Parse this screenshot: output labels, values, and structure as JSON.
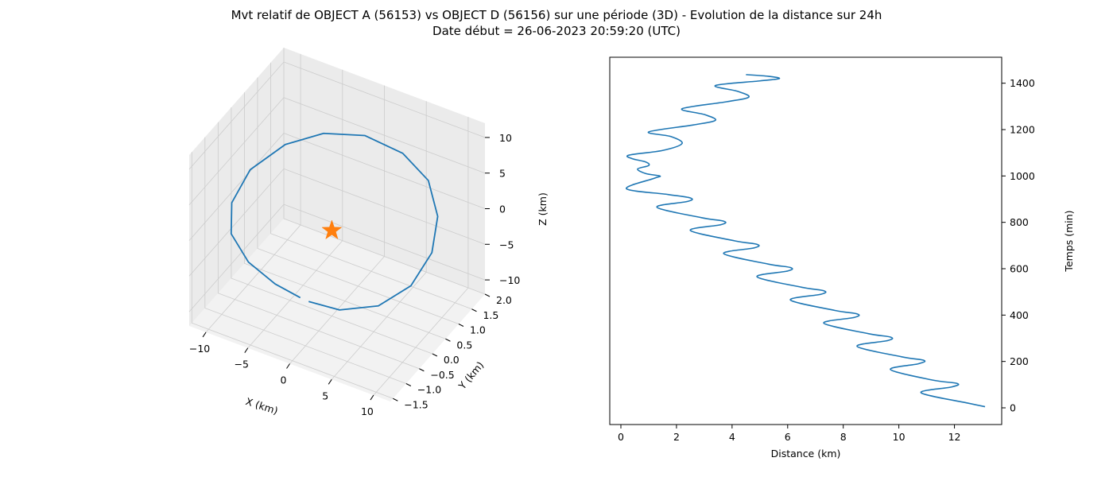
{
  "figure": {
    "title_line1": "Mvt relatif de OBJECT A (56153) vs OBJECT D (56156) sur une période (3D) - Evolution de la distance sur 24h",
    "title_line2": "Date début = 26-06-2023 20:59:20 (UTC)"
  },
  "colors": {
    "series": "#1f77b4",
    "marker": "#ff7f0e",
    "pane_side": "#ebebeb",
    "pane_floor": "#f2f2f2",
    "grid": "#cccccc"
  },
  "chart_data": [
    {
      "type": "line3d",
      "xlabel": "X (km)",
      "ylabel": "Y (km)",
      "zlabel": "Z (km)",
      "xlim": [
        -12,
        12
      ],
      "ylim": [
        -1.6,
        2.0
      ],
      "zlim": [
        -12,
        12
      ],
      "x_ticks": [
        -10,
        -5,
        0,
        5,
        10
      ],
      "y_ticks": [
        -1.5,
        -1.0,
        -0.5,
        0.0,
        0.5,
        1.0,
        1.5,
        2.0
      ],
      "z_ticks": [
        -10,
        -5,
        0,
        5,
        10
      ],
      "x_tick_labels": [
        "−10",
        "−5",
        "0",
        "5",
        "10"
      ],
      "y_tick_labels": [
        "−1.5",
        "−1.0",
        "−0.5",
        "0.0",
        "0.5",
        "1.0",
        "1.5",
        "2.0"
      ],
      "z_tick_labels": [
        "−10",
        "−5",
        "0",
        "5",
        "10"
      ],
      "grid": true,
      "series": [
        {
          "points": [
            [
              1.0,
              -1.2,
              -4.5
            ],
            [
              5.0,
              -1.3,
              -3.5
            ],
            [
              9.0,
              -1.1,
              -2.0
            ],
            [
              11.0,
              -0.5,
              -0.8
            ],
            [
              11.0,
              0.3,
              0.5
            ],
            [
              9.5,
              1.0,
              2.0
            ],
            [
              6.5,
              1.6,
              3.2
            ],
            [
              2.5,
              1.9,
              4.0
            ],
            [
              -2.0,
              1.9,
              4.5
            ],
            [
              -6.0,
              1.6,
              4.3
            ],
            [
              -9.0,
              1.1,
              3.5
            ],
            [
              -11.0,
              0.4,
              2.0
            ],
            [
              -11.0,
              -0.3,
              0.3
            ],
            [
              -9.5,
              -0.8,
              -1.3
            ],
            [
              -6.5,
              -1.1,
              -2.7
            ],
            [
              -3.0,
              -1.2,
              -3.8
            ],
            [
              0.0,
              -1.2,
              -4.4
            ]
          ]
        }
      ],
      "marker": {
        "symbol": "star",
        "point": [
          0,
          0,
          0
        ]
      }
    },
    {
      "type": "line",
      "xlabel": "Distance (km)",
      "ylabel": "Temps (min)",
      "xlim": [
        -0.4,
        13.7
      ],
      "ylim": [
        -72,
        1512
      ],
      "x_ticks": [
        0,
        2,
        4,
        6,
        8,
        10,
        12
      ],
      "y_ticks": [
        0,
        200,
        400,
        600,
        800,
        1000,
        1200,
        1400
      ],
      "y_axis_side": "right",
      "grid": false,
      "series": [
        {
          "distance_km": [
            13.1,
            12.5,
            10.8,
            11.9,
            12.1,
            11.2,
            9.7,
            10.7,
            10.9,
            10.1,
            8.5,
            9.6,
            9.7,
            8.9,
            7.3,
            8.4,
            8.5,
            7.7,
            6.1,
            7.2,
            7.3,
            6.5,
            4.9,
            6.0,
            6.1,
            5.3,
            3.7,
            4.8,
            4.9,
            4.1,
            2.5,
            3.6,
            3.7,
            2.9,
            1.3,
            2.4,
            2.5,
            1.7,
            0.2,
            1.2,
            1.4,
            0.9,
            0.6,
            1.0,
            0.9,
            0.4,
            0.3,
            1.5,
            2.2,
            1.8,
            1.0,
            2.6,
            3.4,
            3.0,
            2.2,
            3.8,
            4.6,
            4.2,
            3.4,
            5.0,
            5.7,
            5.3,
            4.5
          ],
          "time_min": [
            5,
            20,
            65,
            90,
            105,
            120,
            165,
            190,
            205,
            220,
            265,
            290,
            305,
            320,
            365,
            390,
            405,
            420,
            465,
            490,
            505,
            520,
            565,
            590,
            605,
            620,
            665,
            690,
            705,
            720,
            765,
            790,
            805,
            820,
            865,
            890,
            905,
            920,
            945,
            990,
            1000,
            1010,
            1030,
            1045,
            1060,
            1075,
            1090,
            1110,
            1140,
            1170,
            1190,
            1220,
            1240,
            1265,
            1290,
            1320,
            1340,
            1365,
            1390,
            1410,
            1420,
            1430,
            1437
          ]
        }
      ]
    }
  ]
}
